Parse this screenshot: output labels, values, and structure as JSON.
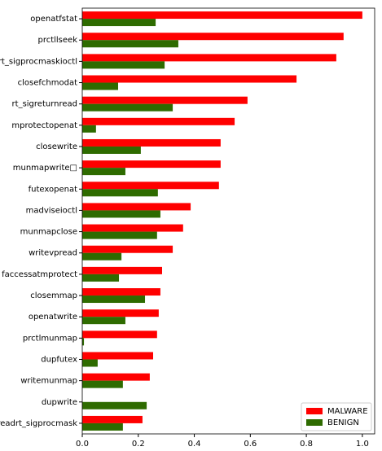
{
  "chart_data": {
    "type": "hbar",
    "categories": [
      "openatfstat",
      "prctllseek",
      "rt_sigprocmaskioctl",
      "closefchmodat",
      "rt_sigreturnread",
      "mprotectopenat",
      "closewrite",
      "munmapwrite□",
      "futexopenat",
      "madviseioctl",
      "munmapclose",
      "writevpread",
      "faccessatmprotect",
      "closemmap",
      "openatwrite",
      "prctlmunmap",
      "dupfutex",
      "writemunmap",
      "dupwrite",
      "readrt_sigprocmask"
    ],
    "series": [
      {
        "name": "MALWARE",
        "color": "#ff0000",
        "values": [
          1.0,
          0.933,
          0.907,
          0.765,
          0.59,
          0.544,
          0.494,
          0.494,
          0.488,
          0.387,
          0.36,
          0.323,
          0.285,
          0.279,
          0.273,
          0.267,
          0.253,
          0.241,
          0,
          0.215
        ]
      },
      {
        "name": "BENIGN",
        "color": "#2e6b00",
        "values": [
          0.262,
          0.343,
          0.294,
          0.128,
          0.323,
          0.049,
          0.209,
          0.154,
          0.27,
          0.279,
          0.267,
          0.14,
          0.131,
          0.224,
          0.154,
          0.006,
          0.055,
          0.145,
          0.23,
          0.145
        ]
      }
    ],
    "xlim": [
      0,
      1.044
    ],
    "xticks": [
      {
        "value": 0,
        "label": "0.0"
      },
      {
        "value": 0.2,
        "label": "0.2"
      },
      {
        "value": 0.4,
        "label": "0.4"
      },
      {
        "value": 0.6,
        "label": "0.6"
      },
      {
        "value": 0.8,
        "label": "0.8"
      },
      {
        "value": 1.0,
        "label": "1.0"
      }
    ],
    "legend": "lower right"
  }
}
